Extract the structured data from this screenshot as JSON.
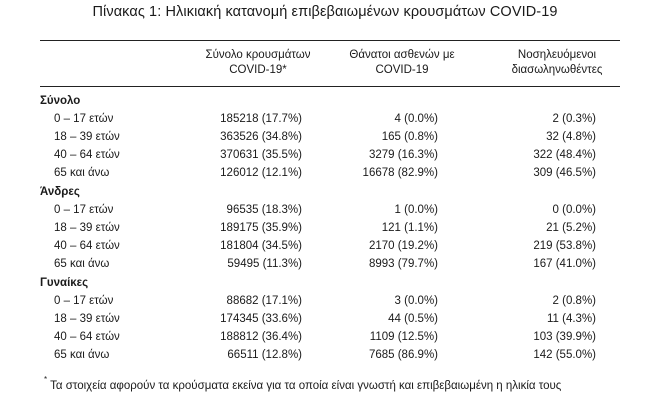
{
  "title": "Πίνακας 1: Ηλικιακή κατανομή επιβεβαιωμένων κρουσμάτων COVID-19",
  "headers": {
    "col1_line1": "Σύνολο κρουσμάτων",
    "col1_line2": "COVID-19*",
    "col2_line1": "Θάνατοι ασθενών με",
    "col2_line2": "COVID-19",
    "col3_line1": "Νοσηλευόμενοι",
    "col3_line2": "διασωληνωθέντες"
  },
  "groups": [
    {
      "name": "Σύνολο",
      "rows": [
        {
          "label": "0 – 17 ετών",
          "cases": "185218 (17.7%)",
          "deaths": "4 (0.0%)",
          "intubated": "2 (0.3%)"
        },
        {
          "label": "18 – 39 ετών",
          "cases": "363526 (34.8%)",
          "deaths": "165 (0.8%)",
          "intubated": "32 (4.8%)"
        },
        {
          "label": "40 – 64 ετών",
          "cases": "370631 (35.5%)",
          "deaths": "3279 (16.3%)",
          "intubated": "322 (48.4%)"
        },
        {
          "label": "65 και άνω",
          "cases": "126012 (12.1%)",
          "deaths": "16678 (82.9%)",
          "intubated": "309 (46.5%)"
        }
      ]
    },
    {
      "name": "Άνδρες",
      "rows": [
        {
          "label": "0 – 17 ετών",
          "cases": "96535 (18.3%)",
          "deaths": "1 (0.0%)",
          "intubated": "0 (0.0%)"
        },
        {
          "label": "18 – 39 ετών",
          "cases": "189175 (35.9%)",
          "deaths": "121 (1.1%)",
          "intubated": "21 (5.2%)"
        },
        {
          "label": "40 – 64 ετών",
          "cases": "181804 (34.5%)",
          "deaths": "2170 (19.2%)",
          "intubated": "219 (53.8%)"
        },
        {
          "label": "65 και άνω",
          "cases": "59495 (11.3%)",
          "deaths": "8993 (79.7%)",
          "intubated": "167 (41.0%)"
        }
      ]
    },
    {
      "name": "Γυναίκες",
      "rows": [
        {
          "label": "0 – 17 ετών",
          "cases": "88682 (17.1%)",
          "deaths": "3 (0.0%)",
          "intubated": "2 (0.8%)"
        },
        {
          "label": "18 – 39 ετών",
          "cases": "174345 (33.6%)",
          "deaths": "44 (0.5%)",
          "intubated": "11 (4.3%)"
        },
        {
          "label": "40 – 64 ετών",
          "cases": "188812 (36.4%)",
          "deaths": "1109 (12.5%)",
          "intubated": "103 (39.9%)"
        },
        {
          "label": "65 και άνω",
          "cases": "66511 (12.8%)",
          "deaths": "7685 (86.9%)",
          "intubated": "142 (55.0%)"
        }
      ]
    }
  ],
  "footnote": {
    "marker": "*",
    "text": "Τα στοιχεία αφορούν τα κρούσματα εκείνα για τα οποία είναι γνωστή και επιβεβαιωμένη η ηλικία τους"
  }
}
